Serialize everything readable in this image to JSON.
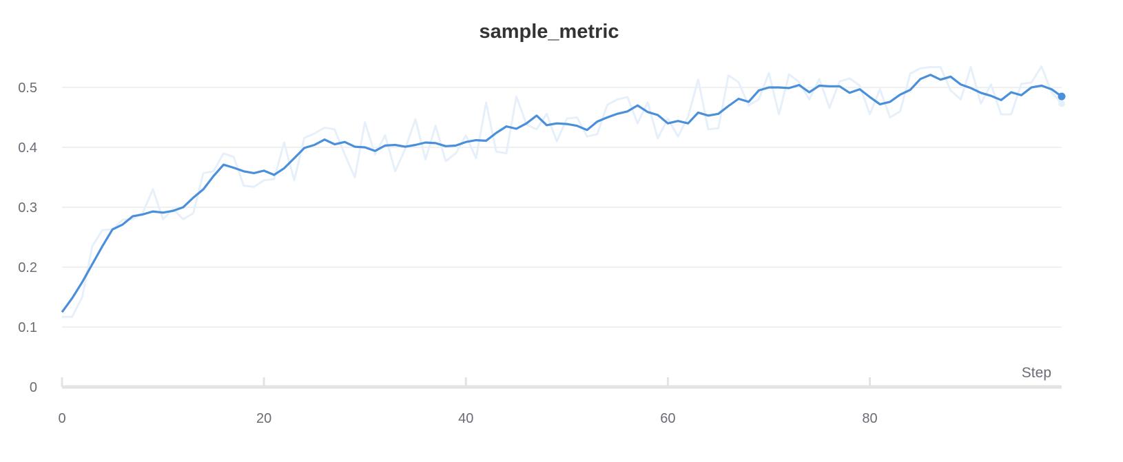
{
  "chart_data": {
    "type": "line",
    "title": "sample_metric",
    "xlabel": "Step",
    "ylabel": "",
    "xlim": [
      0,
      99
    ],
    "ylim": [
      0,
      0.55
    ],
    "x_ticks": [
      0,
      20,
      40,
      60,
      80
    ],
    "y_ticks": [
      0,
      0.1,
      0.2,
      0.3,
      0.4,
      0.5
    ],
    "x_tick_labels": [
      "0",
      "20",
      "40",
      "60",
      "80"
    ],
    "y_tick_labels": [
      "0",
      "0.1",
      "0.2",
      "0.3",
      "0.4",
      "0.5"
    ],
    "grid": true,
    "legend": "none",
    "colors": {
      "smoothed": "#4a8fd9",
      "raw": "#e6f0fb",
      "grid": "#e8e8e8",
      "axis": "#e3e3e3",
      "text": "#6b6b76",
      "title": "#333333"
    },
    "series": [
      {
        "role": "smoothed",
        "values": [
          0.125,
          0.148,
          0.175,
          0.205,
          0.235,
          0.263,
          0.271,
          0.285,
          0.288,
          0.293,
          0.291,
          0.294,
          0.3,
          0.316,
          0.33,
          0.352,
          0.371,
          0.366,
          0.36,
          0.357,
          0.361,
          0.354,
          0.365,
          0.382,
          0.399,
          0.404,
          0.413,
          0.405,
          0.409,
          0.401,
          0.4,
          0.394,
          0.403,
          0.404,
          0.401,
          0.404,
          0.408,
          0.407,
          0.402,
          0.403,
          0.409,
          0.412,
          0.411,
          0.424,
          0.435,
          0.431,
          0.44,
          0.453,
          0.437,
          0.44,
          0.439,
          0.436,
          0.429,
          0.443,
          0.45,
          0.456,
          0.46,
          0.47,
          0.459,
          0.454,
          0.44,
          0.444,
          0.44,
          0.458,
          0.453,
          0.456,
          0.469,
          0.481,
          0.476,
          0.495,
          0.5,
          0.5,
          0.499,
          0.504,
          0.492,
          0.503,
          0.502,
          0.502,
          0.491,
          0.497,
          0.484,
          0.472,
          0.476,
          0.488,
          0.496,
          0.514,
          0.521,
          0.513,
          0.518,
          0.505,
          0.499,
          0.491,
          0.486,
          0.479,
          0.492,
          0.487,
          0.5,
          0.503,
          0.497,
          0.485
        ]
      },
      {
        "role": "raw",
        "values": [
          0.117,
          0.117,
          0.15,
          0.235,
          0.262,
          0.263,
          0.279,
          0.28,
          0.291,
          0.33,
          0.28,
          0.297,
          0.28,
          0.29,
          0.357,
          0.36,
          0.39,
          0.384,
          0.336,
          0.334,
          0.345,
          0.347,
          0.408,
          0.345,
          0.416,
          0.423,
          0.433,
          0.43,
          0.388,
          0.35,
          0.442,
          0.388,
          0.42,
          0.36,
          0.398,
          0.447,
          0.38,
          0.436,
          0.377,
          0.39,
          0.42,
          0.382,
          0.475,
          0.393,
          0.39,
          0.485,
          0.438,
          0.43,
          0.456,
          0.41,
          0.448,
          0.45,
          0.418,
          0.422,
          0.471,
          0.48,
          0.484,
          0.44,
          0.475,
          0.415,
          0.448,
          0.418,
          0.451,
          0.513,
          0.43,
          0.432,
          0.52,
          0.509,
          0.47,
          0.48,
          0.524,
          0.455,
          0.522,
          0.509,
          0.48,
          0.514,
          0.466,
          0.51,
          0.515,
          0.503,
          0.455,
          0.497,
          0.45,
          0.46,
          0.523,
          0.532,
          0.534,
          0.534,
          0.495,
          0.48,
          0.534,
          0.473,
          0.505,
          0.455,
          0.455,
          0.506,
          0.508,
          0.535,
          0.492,
          0.473
        ]
      }
    ]
  }
}
